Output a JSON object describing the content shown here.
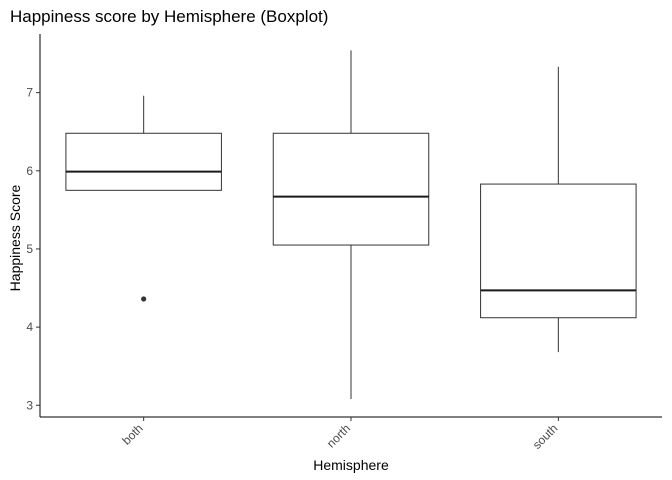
{
  "chart_data": {
    "type": "boxplot",
    "title": "Happiness score by Hemisphere (Boxplot)",
    "xlabel": "Hemisphere",
    "ylabel": "Happiness Score",
    "categories": [
      "both",
      "north",
      "south"
    ],
    "ylim": [
      2.85,
      7.75
    ],
    "yticks": [
      3,
      4,
      5,
      6,
      7
    ],
    "grid": false,
    "legend": "none",
    "boxes": [
      {
        "category": "both",
        "min": 5.75,
        "q1": 5.75,
        "median": 5.99,
        "q3": 6.48,
        "max": 6.96,
        "outliers": [
          4.36
        ]
      },
      {
        "category": "north",
        "min": 3.08,
        "q1": 5.05,
        "median": 5.67,
        "q3": 6.48,
        "max": 7.54,
        "outliers": []
      },
      {
        "category": "south",
        "min": 3.68,
        "q1": 4.12,
        "median": 4.47,
        "q3": 5.83,
        "max": 7.33,
        "outliers": []
      }
    ],
    "colors": {
      "box_fill": "#ffffff",
      "box_stroke": "#333333",
      "median": "#1a1a1a",
      "outlier": "#333333",
      "axis": "#000000",
      "tick_text": "#4d4d4d"
    }
  }
}
